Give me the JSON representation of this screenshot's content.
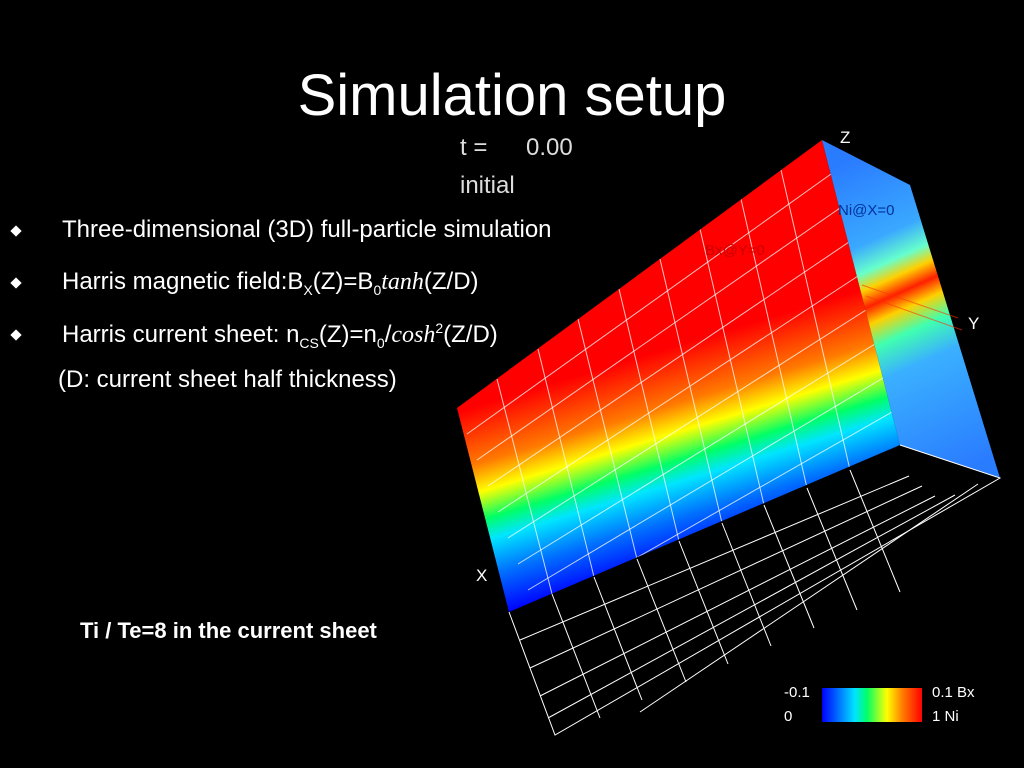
{
  "title": "Simulation setup",
  "time": {
    "label": "t =",
    "value": "0.00",
    "state": "initial"
  },
  "bullets": [
    {
      "parts": [
        "Three-dimensional (3D) full-particle simulation"
      ]
    },
    {
      "prefix": "Harris magnetic field:B",
      "sub1": "X",
      "mid1": "(Z)=B",
      "sub2": "0",
      "italic": "tanh",
      "suffix": "(Z/D)"
    },
    {
      "prefix": "Harris current sheet: n",
      "sub1": "CS",
      "mid1": "(Z)=n",
      "sub2": "0",
      "mid2": "/",
      "italic": "cosh",
      "sup": "2",
      "suffix": "(Z/D)"
    }
  ],
  "note": "(D: current sheet half thickness)",
  "ratio_text": "Ti / Te=8  in the current sheet",
  "plot": {
    "axes": {
      "x": "X",
      "y": "Y",
      "z": "Z"
    },
    "panel_labels": {
      "bx": "Bx@Y=0",
      "ni": "Ni@X=0"
    },
    "colorbar": {
      "min_bx": "-0.1",
      "max_bx": "0.1 Bx",
      "min_ni": "0",
      "max_ni": "1 Ni",
      "colors": [
        "#0000ff",
        "#00e5ff",
        "#00ff66",
        "#ffff00",
        "#ff8000",
        "#ff0000"
      ]
    }
  }
}
